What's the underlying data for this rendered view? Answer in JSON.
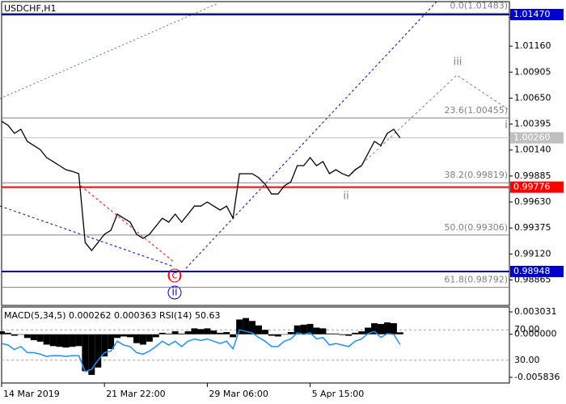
{
  "chart_data": [
    {
      "type": "line",
      "title": "USDCHF,H1",
      "x": [
        0,
        1,
        2,
        3,
        4,
        5,
        6,
        7,
        8,
        9,
        10,
        11,
        12,
        13,
        14,
        15,
        16,
        17,
        18,
        19,
        20,
        21,
        22,
        23,
        24,
        25,
        26,
        27,
        28,
        29,
        30,
        31,
        32,
        33,
        34,
        35,
        36,
        37,
        38,
        39,
        40,
        41,
        42,
        43,
        44,
        45,
        46,
        47,
        48,
        49,
        50,
        51,
        52,
        53,
        54,
        55,
        56,
        57,
        58,
        59,
        60,
        61,
        62
      ],
      "xlim": [
        0,
        79
      ],
      "xticks": [
        {
          "value": 0,
          "label": "14 Mar 2019"
        },
        {
          "value": 16,
          "label": "21 Mar 22:00"
        },
        {
          "value": 32,
          "label": "29 Mar 06:00"
        },
        {
          "value": 48,
          "label": "5 Apr 15:00"
        }
      ],
      "ylim": [
        0.98615,
        1.01597
      ],
      "yticks": [
        {
          "value": 1.0144,
          "label": "1.01440"
        },
        {
          "value": 1.0116,
          "label": "1.01160"
        },
        1.00905,
        {
          "value": 1.0065,
          "label": "1.00650"
        },
        1.00395,
        {
          "value": 1.0014,
          "label": "1.00140"
        },
        0.99885,
        {
          "value": 0.9963,
          "label": "0.99630"
        },
        0.99375,
        {
          "value": 0.9912,
          "label": "0.99120"
        },
        0.98865
      ],
      "series": [
        {
          "color": "#000000",
          "values": [
            1.00423,
            1.00383,
            1.00304,
            1.00344,
            1.00225,
            1.00185,
            1.00145,
            1.00066,
            1.00027,
            0.99987,
            0.99947,
            0.99931,
            0.99908,
            0.99233,
            0.99154,
            0.99233,
            0.99313,
            0.99352,
            0.99511,
            0.99471,
            0.99432,
            0.99313,
            0.99273,
            0.99313,
            0.99392,
            0.99471,
            0.99432,
            0.99511,
            0.99432,
            0.99511,
            0.9959,
            0.9959,
            0.9963,
            0.9959,
            0.99551,
            0.9959,
            0.99471,
            0.99908,
            0.99908,
            0.99908,
            0.99868,
            0.99804,
            0.99709,
            0.99709,
            0.99789,
            0.99828,
            0.99987,
            0.99987,
            1.00066,
            0.99987,
            1.00027,
            0.99908,
            0.99947,
            0.99908,
            0.99884,
            0.99947,
            0.99987,
            1.00106,
            1.00225,
            1.00185,
            1.00304,
            1.00344,
            1.0026
          ]
        }
      ],
      "levels": [
        {
          "value": 1.0147,
          "label": "1.01470",
          "color": "#0000cc"
        },
        {
          "value": 1.0026,
          "label": "1.00260",
          "color": "#c0c0c0"
        },
        {
          "value": 0.99776,
          "color": "#ff0000"
        },
        {
          "value": 0.98948,
          "color": "#0000cc"
        }
      ],
      "fib_levels": [
        {
          "value": 1.01483,
          "label": "0.0(1.01483)"
        },
        {
          "value": 1.00455,
          "label": "23.6(1.00455)"
        },
        {
          "value": 0.99819,
          "label": "38.2(0.99819)"
        },
        {
          "value": 0.99306,
          "label": "50.0(0.99306)"
        },
        {
          "value": 0.98792,
          "label": "61.8(0.98792)"
        }
      ],
      "annotations": [
        "(c)",
        "ii",
        "ii",
        "iii",
        "i"
      ]
    },
    {
      "type": "macd_rsi",
      "title": "MACD(5,34,5) 0.000262 0.000363 RSI(14) 50.63",
      "x": [
        0,
        1,
        2,
        3,
        4,
        5,
        6,
        7,
        8,
        9,
        10,
        11,
        12,
        13,
        14,
        15,
        16,
        17,
        18,
        19,
        20,
        21,
        22,
        23,
        24,
        25,
        26,
        27,
        28,
        29,
        30,
        31,
        32,
        33,
        34,
        35,
        36,
        37,
        38,
        39,
        40,
        41,
        42,
        43,
        44,
        45,
        46,
        47,
        48,
        49,
        50,
        51,
        52,
        53,
        54,
        55,
        56,
        57,
        58,
        59,
        60,
        61,
        62
      ],
      "xlim": [
        0,
        79
      ],
      "ylim": [
        -0.0066,
        0.00369
      ],
      "yticks": [
        0.003031,
        {
          "value": 0,
          "label": "0.000000"
        },
        -0.005836
      ],
      "y2lim": [
        0,
        100
      ],
      "y2ticks": [
        {
          "value": 70,
          "label": "70.00"
        },
        {
          "value": 30,
          "label": "30.00"
        }
      ],
      "series": [
        {
          "color": "#000000",
          "values": [
            0.0004,
            0.0002,
            -0.0002,
            0.0,
            -0.0005,
            -0.0008,
            -0.001,
            -0.0014,
            -0.0016,
            -0.0017,
            -0.0018,
            -0.0017,
            -0.0016,
            -0.005,
            -0.0055,
            -0.0045,
            -0.003,
            -0.002,
            -0.0005,
            -0.0003,
            -0.0004,
            -0.0012,
            -0.0014,
            -0.001,
            -0.0004,
            0.0002,
            0.0001,
            0.0004,
            0.0001,
            0.0004,
            0.0008,
            0.0007,
            0.0008,
            0.0005,
            0.0002,
            0.0003,
            -0.0004,
            0.002,
            0.0022,
            0.0018,
            0.0012,
            0.0006,
            -0.0002,
            -0.0003,
            0.0,
            0.0003,
            0.0012,
            0.0013,
            0.0014,
            0.0009,
            0.0008,
            0.0001,
            0.0001,
            -0.0001,
            -0.0002,
            0.0002,
            0.0004,
            0.0009,
            0.0015,
            0.0014,
            0.0016,
            0.0015,
            0.000262
          ]
        },
        {
          "color": "#1e90ff",
          "axis": "y2",
          "values": [
            52,
            50,
            44,
            48,
            40,
            40,
            38,
            35,
            36,
            36,
            35,
            36,
            36,
            15,
            18,
            30,
            40,
            42,
            55,
            50,
            48,
            40,
            38,
            42,
            48,
            55,
            50,
            55,
            48,
            55,
            58,
            56,
            58,
            55,
            52,
            55,
            45,
            70,
            68,
            66,
            60,
            55,
            48,
            48,
            55,
            58,
            66,
            64,
            66,
            58,
            60,
            50,
            52,
            50,
            48,
            55,
            58,
            65,
            68,
            60,
            65,
            64,
            50.63
          ]
        }
      ]
    }
  ]
}
